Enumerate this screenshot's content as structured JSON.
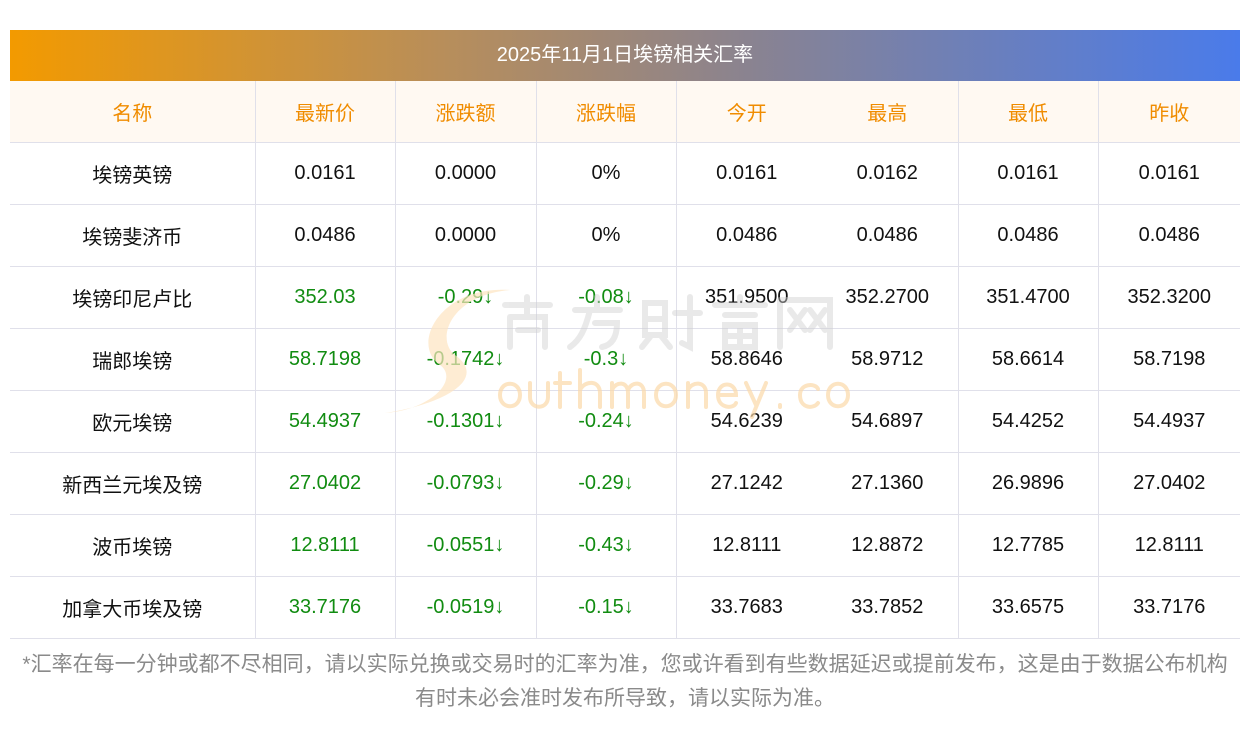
{
  "title": "2025年11月1日埃镑相关汇率",
  "headers": [
    "名称",
    "最新价",
    "涨跌额",
    "涨跌幅",
    "今开",
    "最高",
    "最低",
    "昨收"
  ],
  "rows": [
    {
      "name": "埃镑英镑",
      "latest": "0.0161",
      "change": "0.0000",
      "pct": "0%",
      "open": "0.0161",
      "high": "0.0162",
      "low": "0.0161",
      "prev": "0.0161",
      "down": false
    },
    {
      "name": "埃镑斐济币",
      "latest": "0.0486",
      "change": "0.0000",
      "pct": "0%",
      "open": "0.0486",
      "high": "0.0486",
      "low": "0.0486",
      "prev": "0.0486",
      "down": false
    },
    {
      "name": "埃镑印尼卢比",
      "latest": "352.03",
      "change": "-0.29↓",
      "pct": "-0.08↓",
      "open": "351.9500",
      "high": "352.2700",
      "low": "351.4700",
      "prev": "352.3200",
      "down": true
    },
    {
      "name": "瑞郎埃镑",
      "latest": "58.7198",
      "change": "-0.1742↓",
      "pct": "-0.3↓",
      "open": "58.8646",
      "high": "58.9712",
      "low": "58.6614",
      "prev": "58.7198",
      "down": true
    },
    {
      "name": "欧元埃镑",
      "latest": "54.4937",
      "change": "-0.1301↓",
      "pct": "-0.24↓",
      "open": "54.6239",
      "high": "54.6897",
      "low": "54.4252",
      "prev": "54.4937",
      "down": true
    },
    {
      "name": "新西兰元埃及镑",
      "latest": "27.0402",
      "change": "-0.0793↓",
      "pct": "-0.29↓",
      "open": "27.1242",
      "high": "27.1360",
      "low": "26.9896",
      "prev": "27.0402",
      "down": true
    },
    {
      "name": "波币埃镑",
      "latest": "12.8111",
      "change": "-0.0551↓",
      "pct": "-0.43↓",
      "open": "12.8111",
      "high": "12.8872",
      "low": "12.7785",
      "prev": "12.8111",
      "down": true
    },
    {
      "name": "加拿大币埃及镑",
      "latest": "33.7176",
      "change": "-0.0519↓",
      "pct": "-0.15↓",
      "open": "33.7683",
      "high": "33.7852",
      "low": "33.6575",
      "prev": "33.7176",
      "down": true
    }
  ],
  "watermark": {
    "cn": "南方财富网",
    "en": "outhmoney.com"
  },
  "footer": "*汇率在每一分钟或都不尽相同，请以实际兑换或交易时的汇率为准，您或许看到有些数据延迟或提前发布，这是由于数据公布机构有时未必会准时发布所导致，请以实际为准。",
  "colors": {
    "header_text": "#f08c00",
    "down": "#118c11"
  }
}
